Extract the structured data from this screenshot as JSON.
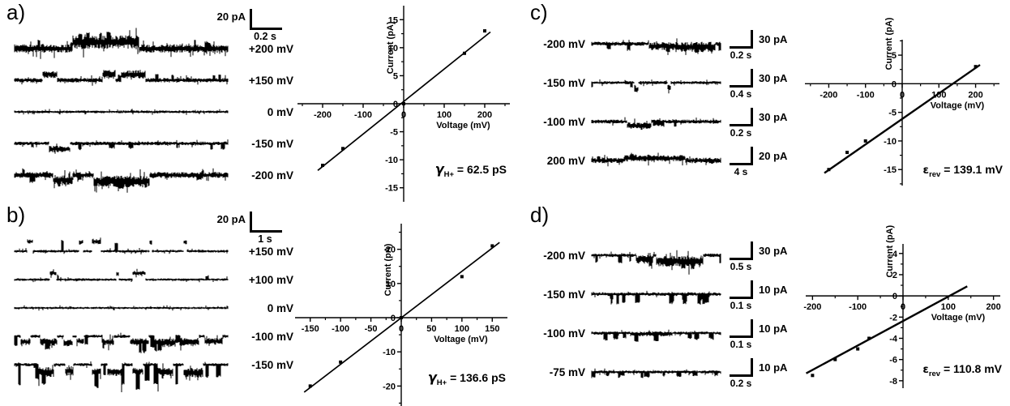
{
  "figure": {
    "background": "#ffffff",
    "ink": "#000000"
  },
  "panels": {
    "a": {
      "label": "a)",
      "scalebar": {
        "current": "20 pA",
        "time": "0.2 s"
      },
      "traces": [
        {
          "label": "+200 mV",
          "wave": {
            "noise": 4.5,
            "events": [
              [
                0.27,
                0.58,
                8,
                3
              ]
            ],
            "spikes": [
              10,
              5,
              11,
              2
            ]
          }
        },
        {
          "label": "+150 mV",
          "wave": {
            "noise": 2.4,
            "events": [
              [
                0.13,
                0.2,
                7,
                1.5
              ],
              [
                0.41,
                0.47,
                7,
                2.5
              ],
              [
                0.5,
                0.61,
                7,
                2
              ]
            ],
            "spikes": [
              6,
              4,
              8,
              2
            ]
          }
        },
        {
          "label": "0 mV",
          "wave": {
            "noise": 1.5,
            "events": [],
            "spikes": [
              0,
              0,
              0,
              0
            ]
          }
        },
        {
          "label": "-150 mV",
          "wave": {
            "noise": 2.0,
            "events": [
              [
                0.16,
                0.26,
                -7,
                1.5
              ]
            ],
            "spikes": [
              8,
              -7,
              -3,
              2
            ]
          }
        },
        {
          "label": "-200 mV",
          "wave": {
            "noise": 3.2,
            "events": [
              [
                0.18,
                0.27,
                -6,
                2
              ],
              [
                0.37,
                0.63,
                -8,
                3
              ]
            ],
            "spikes": [
              10,
              -8,
              -4,
              2
            ]
          }
        }
      ],
      "annotation": {
        "symbol": "γ",
        "sub": "H+",
        "rest": "= 62.5 pS"
      }
    },
    "b": {
      "label": "b)",
      "scalebar": {
        "current": "20 pA",
        "time": "1 s"
      },
      "traces": [
        {
          "label": "+150 mV",
          "wave": {
            "noise": 1.5,
            "events": [
              [
                0.06,
                0.085,
                12,
                1
              ],
              [
                0.3,
                0.32,
                11,
                1
              ],
              [
                0.36,
                0.405,
                12,
                1.5
              ],
              [
                0.63,
                0.643,
                11,
                1
              ],
              [
                0.79,
                0.806,
                11,
                1
              ]
            ],
            "spikes": [
              2,
              8,
              14,
              1
            ]
          }
        },
        {
          "label": "+100 mV",
          "wave": {
            "noise": 1.4,
            "events": [
              [
                0.165,
                0.195,
                8,
                1
              ],
              [
                0.475,
                0.487,
                7,
                1
              ],
              [
                0.55,
                0.61,
                8,
                1
              ]
            ],
            "spikes": [
              2,
              3,
              6,
              1
            ]
          }
        },
        {
          "label": "0 mV",
          "wave": {
            "noise": 1.3,
            "events": [],
            "spikes": [
              0,
              0,
              0,
              0
            ]
          }
        },
        {
          "label": "-100 mV",
          "wave": {
            "noise": 1.7,
            "events": [
              [
                0.03,
                0.075,
                -7,
                2
              ],
              [
                0.12,
                0.2,
                -7,
                2.5
              ],
              [
                0.23,
                0.27,
                -8,
                2
              ],
              [
                0.29,
                0.325,
                -6,
                1.5
              ],
              [
                0.41,
                0.465,
                -7,
                2
              ],
              [
                0.54,
                0.625,
                -7,
                2.5
              ],
              [
                0.655,
                0.75,
                -8,
                3
              ],
              [
                0.775,
                0.86,
                -7,
                3
              ],
              [
                0.89,
                0.97,
                -6,
                2
              ]
            ],
            "spikes": [
              12,
              -13,
              -6,
              2
            ]
          }
        },
        {
          "label": "-150 mV",
          "wave": {
            "noise": 1.7,
            "events": [
              [
                0.11,
                0.185,
                -9,
                4
              ],
              [
                0.235,
                0.275,
                -8,
                3
              ],
              [
                0.36,
                0.405,
                -9,
                2
              ],
              [
                0.435,
                0.5,
                -9,
                3
              ],
              [
                0.55,
                0.6,
                -8,
                2
              ],
              [
                0.67,
                0.74,
                -9,
                3
              ],
              [
                0.79,
                0.88,
                -10,
                4
              ]
            ],
            "spikes": [
              14,
              -24,
              -10,
              2
            ]
          }
        }
      ],
      "annotation": {
        "symbol": "γ",
        "sub": "H+",
        "rest": "= 136.6 pS"
      }
    },
    "c": {
      "label": "c)",
      "traces": [
        {
          "label": "-200 mV",
          "scalebar": {
            "current": "30 pA",
            "time": "0.2 s"
          },
          "wave": {
            "noise": 2.2,
            "events": [
              [
                0.44,
                0.64,
                -3,
                2
              ],
              [
                0.64,
                0.95,
                -4,
                3.5
              ]
            ],
            "spikes": [
              7,
              -11,
              -5,
              2
            ]
          }
        },
        {
          "label": "-150 mV",
          "scalebar": {
            "current": "30 pA",
            "time": "0.4 s"
          },
          "wave": {
            "noise": 1.7,
            "events": [
              [
                0.33,
                0.36,
                -8,
                2
              ],
              [
                0.585,
                0.61,
                -6,
                1.5
              ]
            ],
            "spikes": [
              2,
              -5,
              -3,
              1
            ]
          }
        },
        {
          "label": "-100 mV",
          "scalebar": {
            "current": "30 pA",
            "time": "0.2 s"
          },
          "wave": {
            "noise": 2.1,
            "events": [
              [
                0.27,
                0.46,
                -5,
                1.5
              ]
            ],
            "spikes": [
              5,
              -6,
              -3,
              2
            ]
          }
        },
        {
          "label": "200 mV",
          "scalebar": {
            "current": "20 pA",
            "time": "4 s"
          },
          "wave": {
            "noise": 3.0,
            "events": [
              [
                0.25,
                0.72,
                2.5,
                0.5
              ]
            ],
            "spikes": [
              4,
              3,
              5,
              1
            ]
          }
        }
      ],
      "annotation": {
        "symbol": "ε",
        "sub": "rev",
        "rest": "= 139.1 mV"
      }
    },
    "d": {
      "label": "d)",
      "traces": [
        {
          "label": "-200 mV",
          "scalebar": {
            "current": "30 pA",
            "time": "0.5 s"
          },
          "wave": {
            "noise": 1.9,
            "events": [
              [
                0.34,
                0.47,
                -5,
                3
              ],
              [
                0.5,
                0.86,
                -7,
                4
              ]
            ],
            "spikes": [
              8,
              -9,
              -4,
              2
            ]
          }
        },
        {
          "label": "-150 mV",
          "scalebar": {
            "current": "10 pA",
            "time": "0.1 s"
          },
          "wave": {
            "noise": 1.9,
            "events": [],
            "spikes": [
              20,
              -12,
              -5,
              2
            ]
          }
        },
        {
          "label": "-100 mV",
          "scalebar": {
            "current": "10 pA",
            "time": "0.1 s"
          },
          "wave": {
            "noise": 1.7,
            "events": [
              [
                0.3,
                0.62,
                -1,
                1
              ]
            ],
            "spikes": [
              12,
              -8,
              -4,
              2
            ]
          }
        },
        {
          "label": "-75 mV",
          "scalebar": {
            "current": "10 pA",
            "time": "0.2 s"
          },
          "wave": {
            "noise": 1.7,
            "events": [],
            "spikes": [
              14,
              -6,
              -3,
              2
            ]
          }
        }
      ],
      "annotation": {
        "symbol": "ε",
        "sub": "rev",
        "rest": "= 110.8 mV"
      }
    }
  },
  "chart_data": [
    {
      "panel": "a",
      "type": "scatter",
      "title": "",
      "xlabel": "Voltage (mV)",
      "ylabel": "Current (pA)",
      "xlim": [
        -262,
        262
      ],
      "ylim": [
        -17.5,
        17.5
      ],
      "xticks": [
        -200,
        -100,
        0,
        100,
        200
      ],
      "yticks": [
        -15,
        -10,
        -5,
        0,
        5,
        10,
        15
      ],
      "ylabel_at": 10,
      "grid": false,
      "legend": false,
      "points": [
        [
          -200,
          -11
        ],
        [
          -150,
          -8
        ],
        [
          0,
          0
        ],
        [
          150,
          9
        ],
        [
          200,
          13
        ]
      ],
      "fit_line": [
        [
          -212,
          -11.9
        ],
        [
          214,
          12.8
        ]
      ],
      "annotation": "γH+ = 62.5 pS"
    },
    {
      "panel": "b",
      "type": "scatter",
      "title": "",
      "xlabel": "Voltage (mV)",
      "ylabel": "Current (pA)",
      "xlim": [
        -175,
        175
      ],
      "ylim": [
        -27.5,
        27.5
      ],
      "xticks": [
        -150,
        -100,
        -50,
        0,
        50,
        100,
        150
      ],
      "yticks": [
        -20,
        -10,
        0,
        10,
        20
      ],
      "ylabel_at": 14,
      "grid": false,
      "legend": false,
      "points": [
        [
          -150,
          -20
        ],
        [
          -100,
          -13
        ],
        [
          0,
          0
        ],
        [
          100,
          12
        ],
        [
          150,
          21
        ]
      ],
      "fit_line": [
        [
          -160,
          -21.8
        ],
        [
          162,
          22
        ]
      ],
      "annotation": "γH+ = 136.6 pS"
    },
    {
      "panel": "c",
      "type": "scatter",
      "title": "",
      "xlabel": "Voltage (mV)",
      "ylabel": "Current (pA)",
      "xlim": [
        -265,
        265
      ],
      "ylim": [
        -17.8,
        7.7
      ],
      "xticks": [
        -200,
        -100,
        0,
        100,
        200
      ],
      "yticks": [
        -15,
        -10,
        -5,
        0,
        5
      ],
      "ylabel_at": 7,
      "grid": false,
      "legend": false,
      "points": [
        [
          -200,
          -15
        ],
        [
          -150,
          -12
        ],
        [
          -100,
          -10
        ],
        [
          200,
          3
        ]
      ],
      "fit_line": [
        [
          -212,
          -15.6
        ],
        [
          212,
          3.3
        ]
      ],
      "annotation": "εrev = 139.1 mV"
    },
    {
      "panel": "d",
      "type": "scatter",
      "title": "",
      "xlabel": "Voltage (mV)",
      "ylabel": "Current (pA)",
      "xlim": [
        -215,
        215
      ],
      "ylim": [
        -8.7,
        4.9
      ],
      "xticks": [
        -200,
        -100,
        0,
        100,
        200
      ],
      "yticks": [
        -8,
        -6,
        -4,
        -2,
        0,
        2,
        4
      ],
      "ylabel_at": 4.2,
      "grid": false,
      "legend": false,
      "points": [
        [
          -200,
          -7.5
        ],
        [
          -150,
          -6
        ],
        [
          -100,
          -5
        ],
        [
          -75,
          -4
        ]
      ],
      "fit_line": [
        [
          -214,
          -7.3
        ],
        [
          142,
          0.9
        ]
      ],
      "annotation": "εrev = 110.8 mV"
    }
  ]
}
